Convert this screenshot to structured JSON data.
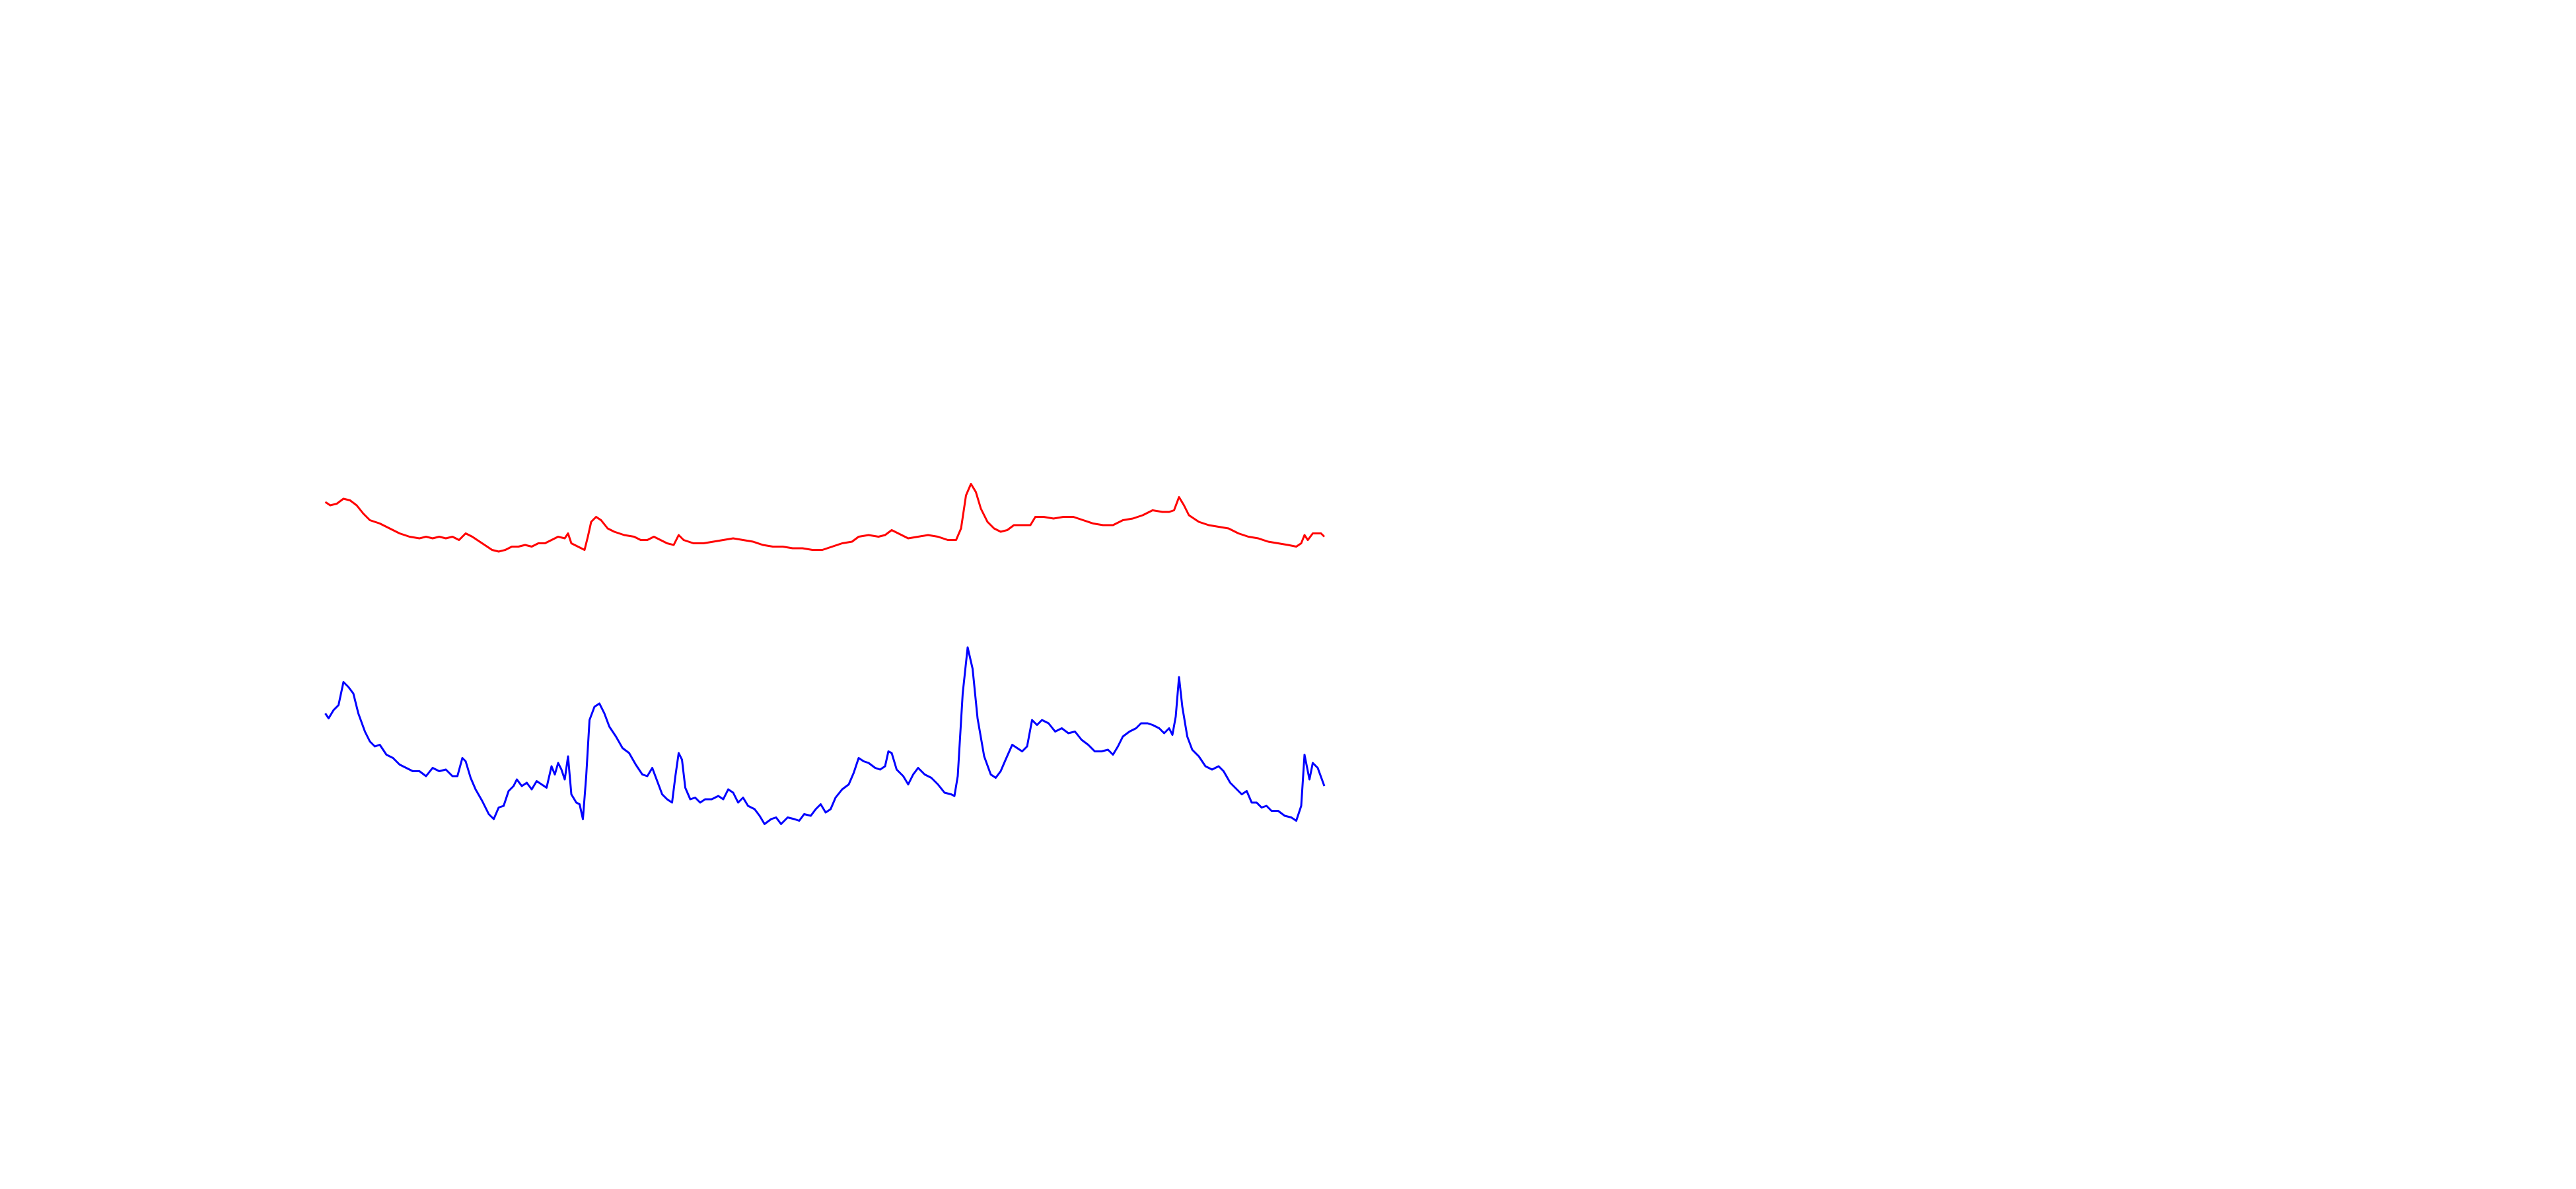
{
  "chart_data": {
    "type": "line",
    "xlim": [
      0,
      1560
    ],
    "ylim": [
      0,
      720
    ],
    "series": [
      {
        "color": "#ff0000",
        "x": [
          197,
          200,
          204,
          208,
          212,
          216,
          220,
          224,
          230,
          236,
          242,
          248,
          254,
          258,
          262,
          266,
          270,
          274,
          278,
          282,
          286,
          292,
          298,
          302,
          306,
          310,
          314,
          318,
          322,
          326,
          330,
          334,
          338,
          342,
          344,
          346,
          350,
          354,
          356,
          358,
          361,
          364,
          368,
          372,
          378,
          384,
          388,
          392,
          396,
          400,
          404,
          408,
          411,
          414,
          420,
          426,
          432,
          438,
          444,
          450,
          456,
          462,
          468,
          474,
          480,
          486,
          492,
          498,
          504,
          510,
          516,
          520,
          526,
          532,
          536,
          540,
          544,
          550,
          556,
          562,
          568,
          574,
          579,
          582,
          585,
          588,
          591,
          594,
          598,
          602,
          606,
          610,
          614,
          620,
          624,
          627,
          632,
          638,
          644,
          650,
          656,
          662,
          668,
          674,
          680,
          686,
          692,
          698,
          704,
          708,
          711,
          714,
          717,
          720,
          726,
          732,
          738,
          744,
          750,
          756,
          762,
          768,
          774,
          780,
          785,
          788,
          790,
          792,
          795,
          800,
          802
        ],
        "values": [
          416,
          414,
          415,
          418,
          417,
          414,
          409,
          405,
          403,
          400,
          397,
          395,
          394,
          395,
          394,
          395,
          394,
          395,
          393,
          397,
          395,
          391,
          387,
          386,
          387,
          389,
          389,
          390,
          389,
          391,
          391,
          393,
          395,
          394,
          397,
          391,
          389,
          387,
          395,
          404,
          407,
          405,
          400,
          398,
          396,
          395,
          393,
          393,
          395,
          393,
          391,
          390,
          396,
          393,
          391,
          391,
          392,
          393,
          394,
          393,
          392,
          390,
          389,
          389,
          388,
          388,
          387,
          387,
          389,
          391,
          392,
          395,
          396,
          395,
          396,
          399,
          397,
          394,
          395,
          396,
          395,
          393,
          393,
          400,
          420,
          427,
          422,
          412,
          404,
          400,
          398,
          399,
          402,
          402,
          402,
          407,
          407,
          406,
          407,
          407,
          405,
          403,
          402,
          402,
          405,
          406,
          408,
          411,
          410,
          410,
          411,
          419,
          414,
          408,
          404,
          402,
          401,
          400,
          397,
          395,
          394,
          392,
          391,
          390,
          389,
          391,
          396,
          393,
          397,
          397,
          395
        ]
      },
      {
        "color": "#0000ff",
        "x": [
          197,
          199,
          202,
          205,
          208,
          211,
          214,
          217,
          221,
          224,
          227,
          230,
          234,
          238,
          242,
          246,
          250,
          254,
          258,
          262,
          266,
          270,
          274,
          277,
          280,
          282,
          285,
          288,
          292,
          296,
          299,
          302,
          305,
          308,
          311,
          313,
          316,
          319,
          322,
          325,
          328,
          331,
          334,
          336,
          338,
          340,
          342,
          344,
          346,
          349,
          351,
          353,
          355,
          357,
          360,
          363,
          366,
          369,
          373,
          377,
          381,
          385,
          389,
          392,
          395,
          398,
          401,
          404,
          407,
          409,
          411,
          413,
          415,
          418,
          421,
          424,
          427,
          431,
          435,
          438,
          441,
          444,
          447,
          450,
          453,
          457,
          460,
          463,
          467,
          470,
          473,
          477,
          481,
          484,
          487,
          491,
          494,
          497,
          500,
          503,
          506,
          510,
          514,
          517,
          520,
          523,
          526,
          530,
          533,
          536,
          538,
          540,
          543,
          547,
          550,
          553,
          556,
          560,
          564,
          568,
          572,
          576,
          578,
          580,
          583,
          586,
          589,
          592,
          596,
          600,
          603,
          606,
          609,
          613,
          616,
          619,
          622,
          625,
          628,
          631,
          635,
          639,
          643,
          647,
          651,
          655,
          659,
          663,
          667,
          671,
          674,
          677,
          680,
          684,
          688,
          691,
          695,
          698,
          702,
          705,
          708,
          710,
          712,
          714,
          716,
          719,
          722,
          726,
          730,
          734,
          738,
          741,
          745,
          749,
          752,
          755,
          758,
          761,
          764,
          767,
          770,
          774,
          778,
          782,
          785,
          788,
          790,
          793,
          795,
          798,
          802
        ],
        "values": [
          288,
          285,
          290,
          293,
          307,
          304,
          300,
          288,
          277,
          271,
          268,
          269,
          263,
          261,
          257,
          255,
          253,
          253,
          250,
          255,
          253,
          254,
          250,
          250,
          261,
          259,
          249,
          242,
          235,
          227,
          224,
          231,
          232,
          241,
          244,
          248,
          244,
          246,
          242,
          247,
          245,
          243,
          256,
          251,
          258,
          254,
          248,
          262,
          239,
          234,
          233,
          224,
          250,
          284,
          292,
          294,
          288,
          280,
          274,
          267,
          264,
          257,
          251,
          250,
          255,
          247,
          239,
          236,
          234,
          250,
          264,
          260,
          243,
          236,
          237,
          234,
          236,
          236,
          238,
          236,
          242,
          240,
          234,
          237,
          232,
          230,
          226,
          221,
          224,
          225,
          221,
          225,
          224,
          223,
          227,
          226,
          230,
          233,
          228,
          230,
          237,
          242,
          245,
          252,
          261,
          259,
          258,
          255,
          254,
          256,
          265,
          264,
          254,
          250,
          245,
          251,
          255,
          251,
          249,
          245,
          240,
          239,
          238,
          250,
          300,
          328,
          315,
          285,
          262,
          251,
          249,
          253,
          260,
          269,
          267,
          265,
          268,
          284,
          281,
          284,
          282,
          277,
          279,
          276,
          277,
          272,
          269,
          265,
          265,
          266,
          263,
          268,
          274,
          277,
          279,
          282,
          282,
          281,
          279,
          276,
          279,
          275,
          286,
          310,
          292,
          274,
          266,
          262,
          256,
          254,
          256,
          253,
          246,
          242,
          239,
          241,
          234,
          234,
          231,
          232,
          229,
          229,
          226,
          225,
          223,
          232,
          263,
          248,
          258,
          255,
          244
        ]
      }
    ]
  }
}
